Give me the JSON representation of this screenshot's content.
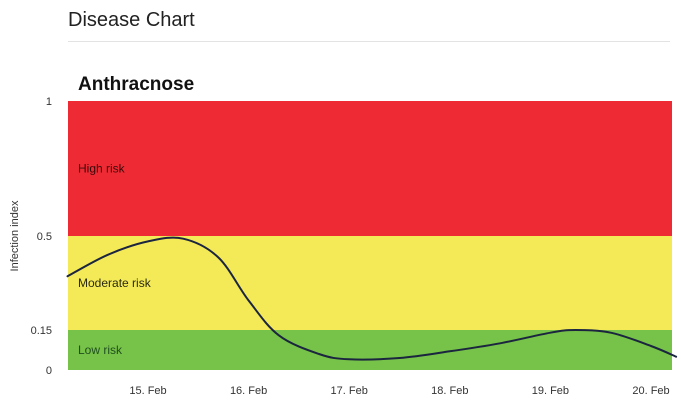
{
  "header": {
    "title": "Disease Chart"
  },
  "colors": {
    "high": "#ee2a35",
    "moderate": "#f4ea58",
    "low": "#77c248",
    "line": "#1b2540",
    "low_label": "#1f4f1f",
    "high_label": "#3a0a0a",
    "moderate_label": "#2a2a10"
  },
  "chart_data": {
    "type": "area",
    "title": "Anthracnose",
    "xlabel": "",
    "ylabel": "Infection index",
    "x_ticks": [
      "15. Feb",
      "16. Feb",
      "17. Feb",
      "18. Feb",
      "19. Feb",
      "20. Feb"
    ],
    "y_ticks": [
      "0",
      "0.15",
      "0.5",
      "1"
    ],
    "x_range": [
      14.2,
      20.25
    ],
    "ylim": [
      0,
      1
    ],
    "y_scale": "piecewise",
    "grid": false,
    "risk_bands": [
      {
        "label": "Low risk",
        "from": 0,
        "to": 0.15,
        "color": "#77c248"
      },
      {
        "label": "Moderate risk",
        "from": 0.15,
        "to": 0.5,
        "color": "#f4ea58"
      },
      {
        "label": "High risk",
        "from": 0.5,
        "to": 1,
        "color": "#ee2a35"
      }
    ],
    "series": [
      {
        "values": [
          {
            "x": 14.2,
            "y": 0.35
          },
          {
            "x": 14.6,
            "y": 0.43
          },
          {
            "x": 15.0,
            "y": 0.48
          },
          {
            "x": 15.35,
            "y": 0.49
          },
          {
            "x": 15.7,
            "y": 0.42
          },
          {
            "x": 16.0,
            "y": 0.26
          },
          {
            "x": 16.3,
            "y": 0.13
          },
          {
            "x": 16.7,
            "y": 0.06
          },
          {
            "x": 17.0,
            "y": 0.04
          },
          {
            "x": 17.5,
            "y": 0.045
          },
          {
            "x": 18.0,
            "y": 0.07
          },
          {
            "x": 18.5,
            "y": 0.1
          },
          {
            "x": 19.0,
            "y": 0.14
          },
          {
            "x": 19.25,
            "y": 0.15
          },
          {
            "x": 19.6,
            "y": 0.14
          },
          {
            "x": 20.0,
            "y": 0.09
          },
          {
            "x": 20.25,
            "y": 0.05
          }
        ]
      }
    ]
  }
}
